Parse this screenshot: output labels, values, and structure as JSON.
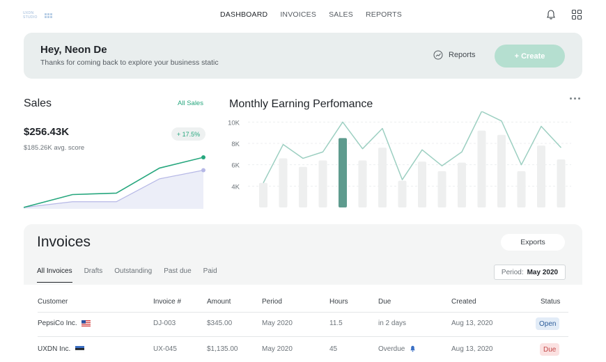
{
  "brand": {
    "logo_text": "UXDN STUDIO"
  },
  "nav": {
    "items": [
      {
        "label": "DASHBOARD",
        "active": true
      },
      {
        "label": "INVOICES",
        "active": false
      },
      {
        "label": "SALES",
        "active": false
      },
      {
        "label": "REPORTS",
        "active": false
      }
    ]
  },
  "topbar_icons": [
    "bell-icon",
    "grid-icon"
  ],
  "banner": {
    "greeting": "Hey, Neon De",
    "subtitle": "Thanks for coming back to explore your business static",
    "reports_label": "Reports",
    "create_label": "+ Create"
  },
  "sales": {
    "title": "Sales",
    "all_link": "All Sales",
    "value": "$256.43K",
    "change": "+ 17.5%",
    "avg": "$185.26K avg. score"
  },
  "monthly": {
    "title": "Monthly Earning Perfomance"
  },
  "chart_data": [
    {
      "type": "area",
      "series": [
        {
          "values": [
            0,
            18,
            20,
            55,
            70
          ],
          "color": "#27a77e"
        },
        {
          "values": [
            0,
            8,
            8,
            40,
            52
          ],
          "color": "#b6b8e6"
        }
      ]
    },
    {
      "type": "bar",
      "y_ticks": [
        "10K",
        "8K",
        "6K",
        "4K"
      ],
      "ylim": [
        2,
        11
      ],
      "bars": [
        4.3,
        6.6,
        5.8,
        6.4,
        8.5,
        6.4,
        7.6,
        4.5,
        6.3,
        5.4,
        6.2,
        9.2,
        8.8,
        5.4,
        7.8,
        6.5
      ],
      "highlight_index": 4,
      "line": [
        4.3,
        7.9,
        6.6,
        7.2,
        10.0,
        7.5,
        9.4,
        4.6,
        7.4,
        5.9,
        7.2,
        11.0,
        10.1,
        6.0,
        9.6,
        7.6
      ],
      "bar_color": "#eeefef",
      "highlight_color": "#5e9b8e",
      "line_color": "#9ccfc1"
    }
  ],
  "invoices": {
    "title": "Invoices",
    "exports_label": "Exports",
    "tabs": [
      "All Invoices",
      "Drafts",
      "Outstanding",
      "Past due",
      "Paid"
    ],
    "period_label": "Period:",
    "period_value": "May 2020",
    "columns": [
      "Customer",
      "Invoice #",
      "Amount",
      "Period",
      "Hours",
      "Due",
      "Created",
      "Status"
    ],
    "rows": [
      {
        "customer": "PepsiCo Inc.",
        "flag": "us-flag-icon",
        "invoice": "DJ-003",
        "amount": "$345.00",
        "period": "May 2020",
        "hours": "11.5",
        "due": "in 2 days",
        "created": "Aug 13, 2020",
        "status": "Open"
      },
      {
        "customer": "UXDN Inc.",
        "flag": "ee-flag-icon",
        "invoice": "UX-045",
        "amount": "$1,135.00",
        "period": "May 2020",
        "hours": "45",
        "due": "Overdue",
        "created": "Aug 13, 2020",
        "status": "Due"
      }
    ]
  }
}
